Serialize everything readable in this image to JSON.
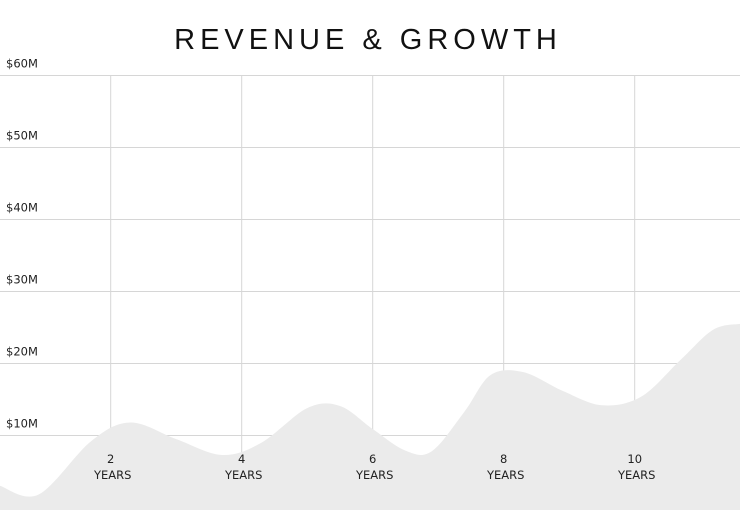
{
  "chart_data": {
    "type": "area",
    "title": "REVENUE & GROWTH",
    "xlabel": "",
    "ylabel": "",
    "y_ticks": [
      "$10M",
      "$20M",
      "$30M",
      "$40M",
      "$50M",
      "$60M"
    ],
    "y_tick_values": [
      10,
      20,
      30,
      40,
      50,
      60
    ],
    "x_ticks": [
      {
        "value": 2,
        "number": "2",
        "unit": "YEARS"
      },
      {
        "value": 4,
        "number": "4",
        "unit": "YEARS"
      },
      {
        "value": 6,
        "number": "6",
        "unit": "YEARS"
      },
      {
        "value": 8,
        "number": "8",
        "unit": "YEARS"
      },
      {
        "value": 10,
        "number": "10",
        "unit": "YEARS"
      }
    ],
    "xlim": [
      0.3,
      11.6
    ],
    "ylim": [
      0,
      60
    ],
    "grid": true,
    "colors": {
      "area": "#ebebeb",
      "grid": "#d6d6d6",
      "text": "#111111",
      "background": "#ffffff"
    },
    "series": [
      {
        "x": [
          0.3,
          0.9,
          1.7,
          2.3,
          3.0,
          3.7,
          4.3,
          5.0,
          5.5,
          6.0,
          6.5,
          6.9,
          7.4,
          7.8,
          8.3,
          8.9,
          9.5,
          10.1,
          10.7,
          11.2,
          11.6
        ],
        "values": [
          3.0,
          1.8,
          9.2,
          11.8,
          9.5,
          7.3,
          9.0,
          13.8,
          14.1,
          10.9,
          7.9,
          7.8,
          13.3,
          18.4,
          18.8,
          16.2,
          14.2,
          15.4,
          20.5,
          24.7,
          25.5
        ]
      }
    ]
  }
}
